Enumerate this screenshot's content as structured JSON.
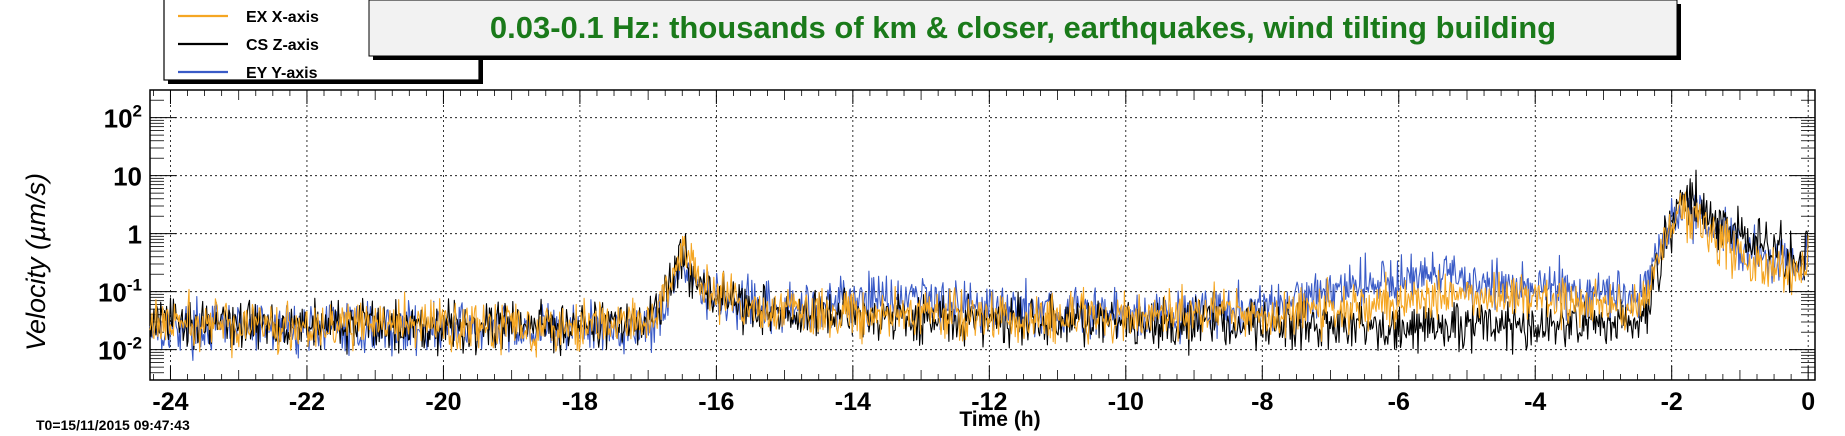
{
  "chart_data": {
    "type": "line",
    "title": "0.03-0.1 Hz: thousands of km & closer, earthquakes, wind tilting building",
    "xlabel": "Time (h)",
    "ylabel": "Velocity  (µm/s)",
    "xlim": [
      -24.3,
      0.1
    ],
    "ylim": [
      0.003,
      300
    ],
    "y_scale": "log",
    "grid": true,
    "legend_placement": "top-left",
    "footer": "T0=15/11/2015 09:47:43",
    "x_ticks": [
      -24,
      -22,
      -20,
      -18,
      -16,
      -14,
      -12,
      -10,
      -8,
      -6,
      -4,
      -2,
      0
    ],
    "x_tick_labels": [
      "-24",
      "-22",
      "-20",
      "-18",
      "-16",
      "-14",
      "-12",
      "-10",
      "-8",
      "-6",
      "-4",
      "-2",
      "0"
    ],
    "y_ticks": [
      0.01,
      0.1,
      1,
      10,
      100
    ],
    "y_tick_labels": [
      {
        "base": "10",
        "exp": "-2"
      },
      {
        "base": "10",
        "exp": "-1"
      },
      {
        "base": "1",
        "exp": ""
      },
      {
        "base": "10",
        "exp": ""
      },
      {
        "base": "10",
        "exp": "2"
      }
    ],
    "series": [
      {
        "name": "EY Y-axis",
        "color": "#3a5bc7",
        "points": [
          [
            -24.3,
            0.025
          ],
          [
            -23,
            0.024
          ],
          [
            -21,
            0.024
          ],
          [
            -19,
            0.023
          ],
          [
            -17.2,
            0.024
          ],
          [
            -16.9,
            0.03
          ],
          [
            -16.6,
            0.15
          ],
          [
            -16.5,
            0.3
          ],
          [
            -16.3,
            0.12
          ],
          [
            -16,
            0.07
          ],
          [
            -15.5,
            0.055
          ],
          [
            -15,
            0.045
          ],
          [
            -14.5,
            0.065
          ],
          [
            -14,
            0.075
          ],
          [
            -13.5,
            0.085
          ],
          [
            -13,
            0.08
          ],
          [
            -12.5,
            0.07
          ],
          [
            -12,
            0.055
          ],
          [
            -11.5,
            0.05
          ],
          [
            -11,
            0.045
          ],
          [
            -10,
            0.04
          ],
          [
            -9,
            0.045
          ],
          [
            -8.5,
            0.05
          ],
          [
            -8,
            0.045
          ],
          [
            -7.5,
            0.07
          ],
          [
            -7,
            0.12
          ],
          [
            -6.5,
            0.14
          ],
          [
            -6,
            0.17
          ],
          [
            -5.5,
            0.18
          ],
          [
            -5,
            0.16
          ],
          [
            -4.5,
            0.13
          ],
          [
            -4,
            0.12
          ],
          [
            -3.5,
            0.11
          ],
          [
            -3,
            0.09
          ],
          [
            -2.6,
            0.09
          ],
          [
            -2.4,
            0.12
          ],
          [
            -2.2,
            0.5
          ],
          [
            -2,
            1.5
          ],
          [
            -1.8,
            3.5
          ],
          [
            -1.6,
            2
          ],
          [
            -1.3,
            1
          ],
          [
            -1,
            0.6
          ],
          [
            -0.7,
            0.4
          ],
          [
            -0.4,
            0.35
          ],
          [
            -0.2,
            0.3
          ],
          [
            0,
            0.45
          ]
        ]
      },
      {
        "name": "CS Z-axis",
        "color": "#000000",
        "points": [
          [
            -24.3,
            0.03
          ],
          [
            -23,
            0.028
          ],
          [
            -21,
            0.027
          ],
          [
            -19,
            0.027
          ],
          [
            -17.2,
            0.028
          ],
          [
            -16.9,
            0.035
          ],
          [
            -16.6,
            0.2
          ],
          [
            -16.5,
            0.45
          ],
          [
            -16.3,
            0.15
          ],
          [
            -16,
            0.08
          ],
          [
            -15.5,
            0.055
          ],
          [
            -15,
            0.035
          ],
          [
            -14.5,
            0.038
          ],
          [
            -14,
            0.04
          ],
          [
            -13.5,
            0.038
          ],
          [
            -13,
            0.035
          ],
          [
            -12,
            0.032
          ],
          [
            -11,
            0.03
          ],
          [
            -10,
            0.03
          ],
          [
            -9,
            0.03
          ],
          [
            -8.5,
            0.03
          ],
          [
            -8,
            0.027
          ],
          [
            -7,
            0.025
          ],
          [
            -6,
            0.025
          ],
          [
            -5,
            0.025
          ],
          [
            -4,
            0.026
          ],
          [
            -3,
            0.025
          ],
          [
            -2.5,
            0.028
          ],
          [
            -2.3,
            0.07
          ],
          [
            -2.1,
            0.6
          ],
          [
            -1.9,
            2.5
          ],
          [
            -1.75,
            5
          ],
          [
            -1.5,
            2.5
          ],
          [
            -1.2,
            1.2
          ],
          [
            -0.8,
            0.7
          ],
          [
            -0.5,
            0.45
          ],
          [
            -0.2,
            0.35
          ],
          [
            0,
            0.6
          ]
        ]
      },
      {
        "name": "EX X-axis",
        "color": "#f5a623",
        "points": [
          [
            -24.3,
            0.028
          ],
          [
            -23,
            0.027
          ],
          [
            -21,
            0.027
          ],
          [
            -19,
            0.027
          ],
          [
            -17.2,
            0.028
          ],
          [
            -16.9,
            0.035
          ],
          [
            -16.6,
            0.25
          ],
          [
            -16.5,
            0.6
          ],
          [
            -16.3,
            0.18
          ],
          [
            -16,
            0.08
          ],
          [
            -15.5,
            0.055
          ],
          [
            -15,
            0.045
          ],
          [
            -14.5,
            0.045
          ],
          [
            -14,
            0.04
          ],
          [
            -13,
            0.04
          ],
          [
            -12,
            0.035
          ],
          [
            -11,
            0.035
          ],
          [
            -10,
            0.035
          ],
          [
            -9,
            0.045
          ],
          [
            -8.5,
            0.05
          ],
          [
            -8,
            0.03
          ],
          [
            -7.5,
            0.045
          ],
          [
            -7,
            0.05
          ],
          [
            -6.5,
            0.06
          ],
          [
            -6,
            0.065
          ],
          [
            -5.5,
            0.08
          ],
          [
            -5,
            0.1
          ],
          [
            -4.5,
            0.09
          ],
          [
            -4,
            0.08
          ],
          [
            -3.5,
            0.065
          ],
          [
            -3,
            0.06
          ],
          [
            -2.6,
            0.06
          ],
          [
            -2.4,
            0.08
          ],
          [
            -2.2,
            0.4
          ],
          [
            -2,
            1.2
          ],
          [
            -1.85,
            3
          ],
          [
            -1.6,
            1.5
          ],
          [
            -1.3,
            0.7
          ],
          [
            -1,
            0.4
          ],
          [
            -0.7,
            0.3
          ],
          [
            -0.4,
            0.25
          ],
          [
            -0.2,
            0.2
          ],
          [
            0,
            0.3
          ]
        ]
      }
    ],
    "legend_order": [
      "EX X-axis",
      "CS Z-axis",
      "EY Y-axis"
    ]
  }
}
